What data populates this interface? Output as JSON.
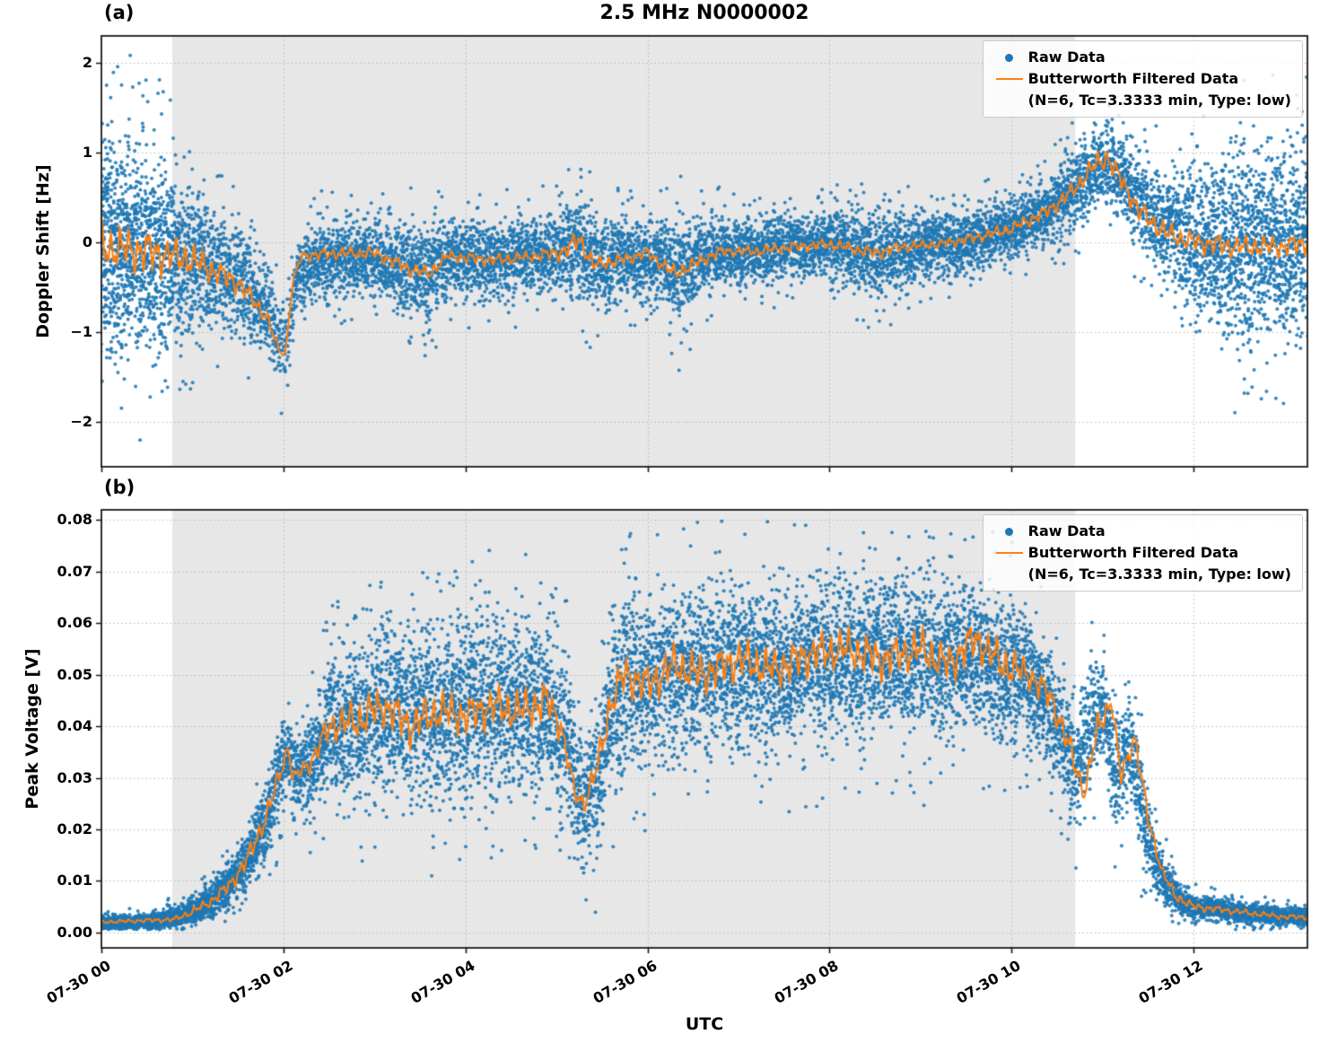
{
  "figure": {
    "title": "2.5 MHz N0000002",
    "xlabel": "UTC"
  },
  "legend": {
    "raw": "Raw Data",
    "filtered_line1": "Butterworth Filtered Data",
    "filtered_line2": "(N=6, Tc=3.3333 min, Type: low)"
  },
  "colors": {
    "raw": "#1f77b4",
    "filtered": "#ff7f0e",
    "shade": "#e7e7e7",
    "grid": "#b3b3b3",
    "frame": "#1a1a1a"
  },
  "x_axis": {
    "lim": [
      0,
      13.25
    ],
    "ticks": [
      0,
      2,
      4,
      6,
      8,
      10,
      12
    ],
    "tick_labels": [
      "07-30 00",
      "07-30 02",
      "07-30 04",
      "07-30 06",
      "07-30 08",
      "07-30 10",
      "07-30 12"
    ]
  },
  "shaded_span": [
    0.78,
    10.7
  ],
  "chart_data": [
    {
      "type": "scatter",
      "id": "a",
      "label": "(a)",
      "ylabel": "Doppler Shift [Hz]",
      "ylim": [
        -2.5,
        2.3
      ],
      "yticks": [
        -2,
        -1,
        0,
        1,
        2
      ],
      "ytick_labels": [
        "−2",
        "−1",
        "0",
        "1",
        "2"
      ],
      "seed": 7,
      "point_step": 0.0036,
      "series_names": [
        "Raw Data",
        "Butterworth Filtered Data (N=6, Tc=3.3333 min, Type: low)"
      ],
      "envelope": {
        "t": [
          0.0,
          0.3,
          0.6,
          0.8,
          1.0,
          1.3,
          1.6,
          1.85,
          1.95,
          2.05,
          2.15,
          2.4,
          3.0,
          3.4,
          3.6,
          3.8,
          4.3,
          4.8,
          5.1,
          5.25,
          5.4,
          5.8,
          6.2,
          6.35,
          6.6,
          7.0,
          7.5,
          8.0,
          8.4,
          8.6,
          9.0,
          9.5,
          10.0,
          10.4,
          10.7,
          10.9,
          11.1,
          11.3,
          11.6,
          12.0,
          12.5,
          13.0,
          13.25
        ],
        "center": [
          -0.05,
          -0.05,
          -0.1,
          -0.15,
          -0.2,
          -0.3,
          -0.5,
          -0.85,
          -1.05,
          -1.1,
          -0.35,
          -0.2,
          -0.15,
          -0.3,
          -0.35,
          -0.18,
          -0.2,
          -0.15,
          -0.1,
          0.0,
          -0.25,
          -0.18,
          -0.2,
          -0.35,
          -0.15,
          -0.1,
          -0.05,
          -0.02,
          -0.1,
          -0.12,
          -0.05,
          0.0,
          0.15,
          0.35,
          0.6,
          0.8,
          0.9,
          0.6,
          0.25,
          0.0,
          -0.05,
          -0.05,
          0.0
        ],
        "spread": [
          1.05,
          1.0,
          0.95,
          0.85,
          0.65,
          0.55,
          0.5,
          0.45,
          0.4,
          0.35,
          0.35,
          0.35,
          0.35,
          0.45,
          0.45,
          0.35,
          0.38,
          0.35,
          0.45,
          0.5,
          0.45,
          0.35,
          0.4,
          0.5,
          0.35,
          0.33,
          0.32,
          0.3,
          0.4,
          0.4,
          0.32,
          0.3,
          0.3,
          0.32,
          0.35,
          0.35,
          0.35,
          0.4,
          0.5,
          0.75,
          0.85,
          0.9,
          0.9
        ],
        "density": [
          5,
          5,
          4.5,
          4,
          3.5,
          3,
          3,
          2.5,
          2,
          1.5,
          2.5,
          3,
          3,
          3,
          3,
          3,
          3,
          3,
          3,
          3,
          3,
          3,
          3,
          3,
          3,
          3,
          3,
          3,
          3,
          3,
          3,
          3,
          3,
          3,
          3,
          3,
          3,
          3,
          3,
          3.5,
          4,
          4,
          4
        ]
      },
      "filtered": {
        "t": [
          0.0,
          0.5,
          1.0,
          1.5,
          1.8,
          1.95,
          2.02,
          2.1,
          2.2,
          2.6,
          3.0,
          3.4,
          3.6,
          3.8,
          4.3,
          4.8,
          5.1,
          5.25,
          5.4,
          5.7,
          6.0,
          6.3,
          6.5,
          6.8,
          7.2,
          7.6,
          8.0,
          8.5,
          8.8,
          9.2,
          9.6,
          10.0,
          10.4,
          10.7,
          10.9,
          11.05,
          11.2,
          11.4,
          11.7,
          12.0,
          12.5,
          13.0,
          13.25
        ],
        "y": [
          -0.05,
          -0.1,
          -0.2,
          -0.45,
          -0.8,
          -1.2,
          -1.25,
          -0.45,
          -0.15,
          -0.12,
          -0.12,
          -0.3,
          -0.35,
          -0.15,
          -0.2,
          -0.15,
          -0.1,
          0.05,
          -0.25,
          -0.2,
          -0.12,
          -0.35,
          -0.25,
          -0.1,
          -0.1,
          -0.05,
          -0.02,
          -0.12,
          -0.05,
          -0.02,
          0.05,
          0.15,
          0.35,
          0.6,
          0.85,
          0.95,
          0.7,
          0.35,
          0.1,
          0.0,
          -0.05,
          -0.05,
          0.0
        ],
        "wiggle": [
          0.25,
          0.25,
          0.18,
          0.12,
          0.1,
          0.05,
          0.03,
          0.05,
          0.06,
          0.07,
          0.07,
          0.08,
          0.08,
          0.06,
          0.07,
          0.06,
          0.1,
          0.12,
          0.1,
          0.07,
          0.06,
          0.09,
          0.08,
          0.06,
          0.06,
          0.06,
          0.06,
          0.07,
          0.06,
          0.05,
          0.06,
          0.07,
          0.08,
          0.09,
          0.12,
          0.12,
          0.12,
          0.12,
          0.12,
          0.12,
          0.12,
          0.12,
          0.12
        ]
      }
    },
    {
      "type": "scatter",
      "id": "b",
      "label": "(b)",
      "ylabel": "Peak Voltage [V]",
      "ylim": [
        -0.003,
        0.082
      ],
      "yticks": [
        0.0,
        0.01,
        0.02,
        0.03,
        0.04,
        0.05,
        0.06,
        0.07,
        0.08
      ],
      "ytick_labels": [
        "0.00",
        "0.01",
        "0.02",
        "0.03",
        "0.04",
        "0.05",
        "0.06",
        "0.07",
        "0.08"
      ],
      "seed": 13,
      "point_step": 0.0036,
      "clamp_min": 0.0005,
      "series_names": [
        "Raw Data",
        "Butterworth Filtered Data (N=6, Tc=3.3333 min, Type: low)"
      ],
      "envelope": {
        "t": [
          0.0,
          0.5,
          0.8,
          1.0,
          1.2,
          1.4,
          1.6,
          1.8,
          1.95,
          2.05,
          2.12,
          2.3,
          2.5,
          2.8,
          3.1,
          3.5,
          4.0,
          4.5,
          4.9,
          5.1,
          5.3,
          5.45,
          5.6,
          5.8,
          6.0,
          6.5,
          7.0,
          7.5,
          8.0,
          8.5,
          9.0,
          9.5,
          10.0,
          10.3,
          10.5,
          10.7,
          10.85,
          11.0,
          11.15,
          11.3,
          11.45,
          11.6,
          11.8,
          12.0,
          12.5,
          13.0,
          13.25
        ],
        "center": [
          0.002,
          0.002,
          0.003,
          0.004,
          0.006,
          0.009,
          0.014,
          0.021,
          0.029,
          0.036,
          0.031,
          0.032,
          0.04,
          0.041,
          0.044,
          0.041,
          0.043,
          0.044,
          0.043,
          0.037,
          0.024,
          0.03,
          0.044,
          0.049,
          0.048,
          0.051,
          0.052,
          0.051,
          0.053,
          0.054,
          0.053,
          0.054,
          0.051,
          0.047,
          0.04,
          0.031,
          0.04,
          0.044,
          0.031,
          0.037,
          0.022,
          0.012,
          0.007,
          0.005,
          0.004,
          0.003,
          0.003
        ],
        "spread": [
          0.0012,
          0.0012,
          0.002,
          0.002,
          0.003,
          0.004,
          0.005,
          0.006,
          0.007,
          0.006,
          0.005,
          0.008,
          0.011,
          0.013,
          0.014,
          0.014,
          0.014,
          0.014,
          0.014,
          0.013,
          0.01,
          0.012,
          0.014,
          0.014,
          0.013,
          0.013,
          0.013,
          0.013,
          0.013,
          0.012,
          0.013,
          0.012,
          0.012,
          0.01,
          0.009,
          0.009,
          0.011,
          0.008,
          0.009,
          0.008,
          0.008,
          0.005,
          0.003,
          0.002,
          0.0018,
          0.0015,
          0.0015
        ],
        "density": [
          3,
          3,
          3.5,
          3.5,
          3.5,
          3.5,
          3.5,
          3.5,
          3,
          3,
          3,
          3.5,
          3.5,
          3.5,
          3.5,
          3.5,
          3.5,
          3.5,
          3.5,
          3.5,
          3,
          3,
          3.5,
          3.5,
          3.5,
          3.5,
          3.5,
          3.5,
          3.5,
          3.5,
          3.5,
          3.5,
          3.5,
          3.5,
          3,
          3,
          3,
          3,
          3,
          3,
          3,
          3,
          3,
          3,
          3,
          3,
          3
        ]
      },
      "filtered": {
        "t": [
          0.0,
          0.8,
          1.0,
          1.2,
          1.4,
          1.6,
          1.8,
          1.95,
          2.05,
          2.1,
          2.3,
          2.5,
          2.8,
          3.1,
          3.4,
          3.7,
          4.0,
          4.3,
          4.6,
          4.9,
          5.05,
          5.2,
          5.3,
          5.45,
          5.6,
          5.75,
          6.0,
          6.3,
          6.6,
          7.0,
          7.4,
          7.8,
          8.2,
          8.6,
          9.0,
          9.3,
          9.6,
          9.9,
          10.2,
          10.45,
          10.65,
          10.8,
          10.95,
          11.1,
          11.2,
          11.35,
          11.5,
          11.65,
          11.8,
          12.0,
          12.5,
          13.0,
          13.25
        ],
        "y": [
          0.002,
          0.0025,
          0.004,
          0.006,
          0.009,
          0.014,
          0.022,
          0.03,
          0.036,
          0.03,
          0.033,
          0.04,
          0.041,
          0.044,
          0.04,
          0.043,
          0.042,
          0.044,
          0.043,
          0.045,
          0.04,
          0.027,
          0.025,
          0.032,
          0.045,
          0.05,
          0.048,
          0.052,
          0.05,
          0.053,
          0.051,
          0.054,
          0.055,
          0.053,
          0.055,
          0.052,
          0.057,
          0.052,
          0.05,
          0.045,
          0.035,
          0.027,
          0.04,
          0.045,
          0.03,
          0.038,
          0.022,
          0.012,
          0.007,
          0.005,
          0.004,
          0.003,
          0.003
        ],
        "wiggle": [
          0.0003,
          0.0005,
          0.0008,
          0.001,
          0.0015,
          0.002,
          0.002,
          0.002,
          0.001,
          0.001,
          0.002,
          0.003,
          0.004,
          0.004,
          0.004,
          0.004,
          0.004,
          0.004,
          0.004,
          0.004,
          0.003,
          0.002,
          0.002,
          0.003,
          0.004,
          0.004,
          0.004,
          0.004,
          0.004,
          0.004,
          0.004,
          0.004,
          0.004,
          0.004,
          0.004,
          0.004,
          0.004,
          0.004,
          0.003,
          0.003,
          0.003,
          0.002,
          0.003,
          0.002,
          0.002,
          0.002,
          0.002,
          0.001,
          0.001,
          0.0008,
          0.0006,
          0.0005,
          0.0005
        ]
      }
    }
  ]
}
